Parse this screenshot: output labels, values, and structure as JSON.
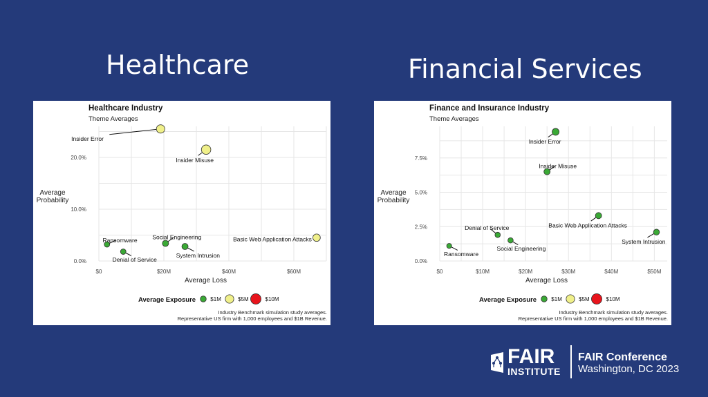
{
  "slide": {
    "left_heading": "Healthcare",
    "right_heading": "Financial Services"
  },
  "logo": {
    "word1": "FAIR",
    "word2": "INSTITUTE",
    "conference": "FAIR Conference",
    "location": "Washington, DC 2023"
  },
  "colors": {
    "background": "#243a7a",
    "small": "#3aa935",
    "medium": "#f0f08a",
    "large": "#e8141c",
    "grid": "#e6e6e6"
  },
  "chart_data": [
    {
      "type": "scatter",
      "title": "Healthcare Industry",
      "subtitle": "Theme Averages",
      "xlabel": "Average Loss",
      "ylabel": "Average\nProbability",
      "xlim": [
        0,
        70
      ],
      "ylim": [
        0,
        26
      ],
      "xticks": [
        {
          "v": 0,
          "label": "$0"
        },
        {
          "v": 20,
          "label": "$20M"
        },
        {
          "v": 40,
          "label": "$40M"
        },
        {
          "v": 60,
          "label": "$60M"
        }
      ],
      "yticks": [
        {
          "v": 0,
          "label": "0.0%"
        },
        {
          "v": 10,
          "label": "10.0%"
        },
        {
          "v": 20,
          "label": "20.0%"
        }
      ],
      "grid": true,
      "legend": {
        "title": "Average Exposure",
        "placement": "bottom",
        "items": [
          {
            "label": "$1M",
            "exposure": 1
          },
          {
            "label": "$5M",
            "exposure": 5
          },
          {
            "label": "$10M",
            "exposure": 10
          }
        ]
      },
      "caption": [
        "Industry Benchmark simulation study averages.",
        "Representative US firm with 1,000 employees and $1B Revenue."
      ],
      "points": [
        {
          "label": "Insider Error",
          "x": 19,
          "y": 25.5,
          "exposure": 4.8,
          "lx": -3.5,
          "ly": 23.6,
          "anchor": "middle"
        },
        {
          "label": "Insider Misuse",
          "x": 33,
          "y": 21.5,
          "exposure": 7.2,
          "lx": 29.5,
          "ly": 19.5,
          "anchor": "middle"
        },
        {
          "label": "Basic Web Application Attacks",
          "x": 67,
          "y": 4.5,
          "exposure": 3.0,
          "lx": 65.5,
          "ly": 4.2,
          "anchor": "end"
        },
        {
          "label": "Social Engineering",
          "x": 20.5,
          "y": 3.4,
          "exposure": 1.3,
          "lx": 24,
          "ly": 4.6,
          "anchor": "middle"
        },
        {
          "label": "System Intrusion",
          "x": 26.5,
          "y": 2.8,
          "exposure": 1.3,
          "lx": 30.5,
          "ly": 1.1,
          "anchor": "middle"
        },
        {
          "label": "Ransomware",
          "x": 2.5,
          "y": 3.2,
          "exposure": 0.6,
          "lx": 6.5,
          "ly": 4.0,
          "anchor": "middle"
        },
        {
          "label": "Denial of Service",
          "x": 7.5,
          "y": 1.8,
          "exposure": 0.6,
          "lx": 11,
          "ly": 0.3,
          "anchor": "middle"
        }
      ]
    },
    {
      "type": "scatter",
      "title": "Finance and Insurance Industry",
      "subtitle": "Theme Averages",
      "xlabel": "Average Loss",
      "ylabel": "Average\nProbability",
      "xlim": [
        0,
        53
      ],
      "ylim": [
        0,
        9.8
      ],
      "xticks": [
        {
          "v": 0,
          "label": "$0"
        },
        {
          "v": 10,
          "label": "$10M"
        },
        {
          "v": 20,
          "label": "$20M"
        },
        {
          "v": 30,
          "label": "$30M"
        },
        {
          "v": 40,
          "label": "$40M"
        },
        {
          "v": 50,
          "label": "$50M"
        }
      ],
      "yticks": [
        {
          "v": 0,
          "label": "0.0%"
        },
        {
          "v": 2.5,
          "label": "2.5%"
        },
        {
          "v": 5,
          "label": "5.0%"
        },
        {
          "v": 7.5,
          "label": "7.5%"
        }
      ],
      "grid": true,
      "legend": {
        "title": "Average Exposure",
        "placement": "bottom",
        "items": [
          {
            "label": "$1M",
            "exposure": 1
          },
          {
            "label": "$5M",
            "exposure": 5
          },
          {
            "label": "$10M",
            "exposure": 10
          }
        ]
      },
      "caption": [
        "Industry Benchmark simulation study averages.",
        "Representative US firm with 1,000 employees and $1B Revenue."
      ],
      "points": [
        {
          "label": "Insider Error",
          "x": 27,
          "y": 9.4,
          "exposure": 2.2,
          "lx": 24.5,
          "ly": 8.7,
          "anchor": "middle"
        },
        {
          "label": "Insider Misuse",
          "x": 25,
          "y": 6.5,
          "exposure": 1.3,
          "lx": 27.5,
          "ly": 6.9,
          "anchor": "middle"
        },
        {
          "label": "Basic Web Application Attacks",
          "x": 37,
          "y": 3.3,
          "exposure": 1.3,
          "lx": 34.5,
          "ly": 2.6,
          "anchor": "middle"
        },
        {
          "label": "System Intrusion",
          "x": 50.5,
          "y": 2.1,
          "exposure": 1.0,
          "lx": 47.5,
          "ly": 1.4,
          "anchor": "middle"
        },
        {
          "label": "Denial of Service",
          "x": 13.5,
          "y": 1.9,
          "exposure": 0.5,
          "lx": 11,
          "ly": 2.4,
          "anchor": "middle"
        },
        {
          "label": "Social Engineering",
          "x": 16.5,
          "y": 1.5,
          "exposure": 0.5,
          "lx": 19,
          "ly": 0.9,
          "anchor": "middle"
        },
        {
          "label": "Ransomware",
          "x": 2.2,
          "y": 1.1,
          "exposure": 0.3,
          "lx": 5,
          "ly": 0.5,
          "anchor": "middle"
        }
      ]
    }
  ]
}
